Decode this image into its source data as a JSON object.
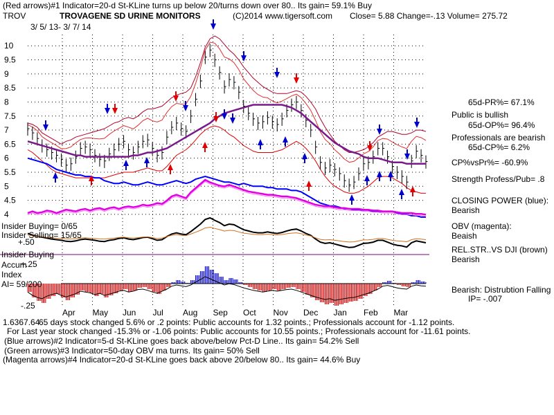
{
  "header": {
    "line1": "(Red arrows)#1 Indicator=20-d St-KLine turns up below 20/turns down over 80.. Its gain= 59.1% Buy",
    "ticker": "TROV",
    "company": "TROVAGENE SD URINE MONITORS",
    "copyright": "(C)2014 www.tigersoft.com",
    "quote": "Close=  5.88  Change=-.13 Volume= 275.72",
    "date_range": "3/ 5/ 13- 3/ 7/ 14"
  },
  "right_panel": {
    "pr": "65d-PR%= 67.1%",
    "public": "Public is bullish",
    "op": "65d-OP%= 96.4%",
    "pros": "Professionals are bearish",
    "cp": "65d-CP%= 6.2%",
    "cpvspr": "CP%vsPr%= -60.9%",
    "strength": "Strength Profess/Pub= .8",
    "closing_power": "CLOSING POWER (blue):",
    "closing_power_val": "Bearish",
    "obv": "OBV (magenta):",
    "obv_val": "Beaish",
    "relstr": "REL.STR..VS DJI (brown)",
    "relstr_val": "Bearish",
    "distribution": "Bearish: Distrubtion Falling",
    "ip": "IP= -.007"
  },
  "left_panel": {
    "insider_buying": "Insider Buying= 0/65",
    "insider_selling": "Insider Selling= 15/65",
    "plus50": "+.50",
    "insider_buying2": "Insider Buying",
    "accum": "Accum",
    "plus25": "+.25",
    "index": "Index",
    "ai": "AI= 59/200",
    "minus25": "-.25"
  },
  "footer": {
    "overlap_prefix": "1.6367.64",
    "line1": "65 days stock changed  5.6% or  .2 points:  Public accounts for  1.32 points.;  Professionals account for -1.12 points.",
    "line2": "For Last year stock changed -15.3% or -1.06 points:  Public accounts for  10.55 points.;  Professionals account for -11.61 points.",
    "line3": "(Blue arrows)#2 Indicator=5-d St-KLine goes back above/below Pct-D Line.. Its gain= 54.2% Sell",
    "line4": "(Green arrows)#3 Indicator=50-day OBV ma turns. Its gain= 50% Sell",
    "line5": "(Magenta arrows)#4 Indicator=20-d St-KLine goes back above 20/below 80.. Its gain= 44.6% Buy"
  },
  "chart_data": {
    "type": "line",
    "title": "TROVAGENE SD URINE MONITORS",
    "yticks": [
      "10",
      "9.5",
      "9",
      "8.5",
      "8",
      "7.5",
      "7",
      "6.5",
      "6",
      "5.5",
      "5",
      "4.5",
      "4"
    ],
    "ylim": [
      3.8,
      10.4
    ],
    "months": [
      "Apr",
      "May",
      "Jun",
      "Jul",
      "Aug",
      "Sep",
      "Oct",
      "Nov",
      "Dec",
      "Jan",
      "Feb",
      "Mar"
    ],
    "price_close": [
      7.05,
      6.9,
      6.7,
      6.45,
      6.3,
      6.2,
      6.1,
      5.95,
      5.75,
      5.8,
      6.05,
      6.35,
      6.4,
      6.3,
      6.1,
      5.95,
      5.9,
      6.15,
      6.3,
      6.5,
      6.6,
      6.3,
      6.2,
      6.4,
      6.6,
      6.65,
      6.35,
      6.1,
      6.2,
      6.75,
      7.1,
      7.25,
      7.05,
      6.95,
      7.5,
      8.1,
      8.75,
      9.6,
      9.85,
      9.5,
      9.05,
      8.55,
      8.8,
      8.7,
      8.35,
      7.85,
      7.6,
      7.4,
      7.25,
      7.3,
      7.45,
      7.3,
      7.2,
      7.4,
      7.7,
      7.9,
      8.0,
      7.7,
      7.35,
      7.0,
      6.4,
      5.85,
      5.65,
      5.75,
      5.6,
      5.45,
      5.2,
      5.05,
      5.15,
      5.45,
      5.8,
      5.85,
      6.05,
      6.35,
      6.35,
      6.05,
      5.7,
      5.5,
      5.35,
      5.15,
      5.9,
      6.25,
      6.1,
      5.88
    ],
    "bollinger_upper": [
      7.25,
      7.2,
      7.1,
      6.9,
      6.8,
      6.7,
      6.6,
      6.5,
      6.6,
      6.65,
      6.75,
      6.8,
      6.85,
      6.9,
      6.95,
      7.0,
      7.05,
      7.15,
      7.25,
      7.3,
      7.4,
      7.45,
      7.4,
      7.5,
      7.65,
      7.75,
      7.75,
      7.8,
      7.85,
      8.0,
      8.15,
      8.25,
      8.3,
      8.35,
      8.5,
      8.9,
      9.4,
      9.95,
      10.25,
      10.35,
      10.25,
      10.05,
      9.85,
      9.7,
      9.5,
      9.25,
      9.05,
      8.85,
      8.7,
      8.55,
      8.45,
      8.35,
      8.3,
      8.3,
      8.3,
      8.35,
      8.4,
      8.35,
      8.2,
      8.0,
      7.75,
      7.4,
      7.1,
      6.85,
      6.6,
      6.45,
      6.3,
      6.2,
      6.2,
      6.25,
      6.3,
      6.4,
      6.55,
      6.75,
      6.85,
      6.95,
      6.95,
      6.9,
      6.85,
      6.85,
      6.9,
      7.0,
      7.0,
      6.95
    ],
    "bollinger_lower": [
      6.3,
      6.2,
      6.05,
      5.9,
      5.75,
      5.6,
      5.5,
      5.45,
      5.4,
      5.35,
      5.3,
      5.3,
      5.3,
      5.3,
      5.3,
      5.3,
      5.3,
      5.35,
      5.4,
      5.45,
      5.5,
      5.5,
      5.5,
      5.55,
      5.6,
      5.65,
      5.6,
      5.55,
      5.55,
      5.7,
      5.9,
      6.1,
      6.2,
      6.3,
      6.45,
      6.65,
      6.85,
      7.0,
      7.1,
      7.15,
      7.1,
      7.0,
      6.85,
      6.75,
      6.6,
      6.45,
      6.35,
      6.25,
      6.2,
      6.2,
      6.2,
      6.2,
      6.25,
      6.3,
      6.4,
      6.5,
      6.6,
      6.5,
      6.35,
      6.15,
      5.9,
      5.6,
      5.35,
      5.15,
      5.0,
      4.9,
      4.8,
      4.75,
      4.75,
      4.8,
      4.9,
      5.0,
      5.15,
      5.3,
      5.35,
      5.35,
      5.3,
      5.2,
      5.1,
      4.95,
      4.85,
      4.8,
      4.75,
      4.75
    ],
    "ma50": [
      6.6,
      6.55,
      6.5,
      6.45,
      6.4,
      6.35,
      6.3,
      6.25,
      6.2,
      6.15,
      6.1,
      6.1,
      6.05,
      6.05,
      6.05,
      6.05,
      6.05,
      6.05,
      6.05,
      6.05,
      6.05,
      6.05,
      6.1,
      6.1,
      6.15,
      6.2,
      6.2,
      6.25,
      6.3,
      6.35,
      6.45,
      6.55,
      6.65,
      6.75,
      6.85,
      6.95,
      7.05,
      7.15,
      7.25,
      7.4,
      7.5,
      7.6,
      7.65,
      7.7,
      7.75,
      7.8,
      7.85,
      7.9,
      7.9,
      7.9,
      7.9,
      7.9,
      7.9,
      7.9,
      7.85,
      7.8,
      7.7,
      7.6,
      7.45,
      7.3,
      7.15,
      7.0,
      6.85,
      6.7,
      6.55,
      6.45,
      6.35,
      6.25,
      6.2,
      6.15,
      6.05,
      6.0,
      6.0,
      6.0,
      5.95,
      5.9,
      5.85,
      5.85,
      5.85,
      5.8,
      5.8,
      5.8,
      5.8,
      5.8
    ],
    "closing_power": [
      6.0,
      5.95,
      5.9,
      5.85,
      5.8,
      5.7,
      5.6,
      5.55,
      5.5,
      5.45,
      5.4,
      5.4,
      5.35,
      5.35,
      5.3,
      5.3,
      5.2,
      5.15,
      5.1,
      5.1,
      5.15,
      5.1,
      5.05,
      5.05,
      5.1,
      5.15,
      5.1,
      5.05,
      5.05,
      5.1,
      5.15,
      5.2,
      5.15,
      5.1,
      5.15,
      5.25,
      5.3,
      5.35,
      5.3,
      5.25,
      5.2,
      5.15,
      5.15,
      5.1,
      5.05,
      5.1,
      5.05,
      5.0,
      5.0,
      5.0,
      4.95,
      4.95,
      4.9,
      4.9,
      4.9,
      4.85,
      4.85,
      4.8,
      4.7,
      4.6,
      4.5,
      4.4,
      4.35,
      4.3,
      4.3,
      4.25,
      4.2,
      4.2,
      4.15,
      4.15,
      4.15,
      4.15,
      4.1,
      4.1,
      4.1,
      4.1,
      4.1,
      4.05,
      4.0,
      4.0,
      3.95,
      3.95,
      3.9,
      3.9
    ],
    "obv": [
      3.6,
      3.62,
      3.6,
      3.61,
      3.63,
      3.62,
      3.6,
      3.62,
      3.64,
      3.63,
      3.62,
      3.64,
      3.65,
      3.63,
      3.65,
      3.66,
      3.64,
      3.66,
      3.67,
      3.65,
      3.67,
      3.68,
      3.67,
      3.68,
      3.7,
      3.69,
      3.7,
      3.72,
      3.71,
      3.75,
      3.8,
      3.82,
      3.8,
      3.78,
      3.85,
      3.9,
      3.95,
      4.0,
      3.97,
      3.95,
      3.93,
      3.92,
      3.94,
      3.92,
      3.9,
      3.88,
      3.86,
      3.85,
      3.84,
      3.83,
      3.82,
      3.82,
      3.81,
      3.8,
      3.8,
      3.79,
      3.78,
      3.76,
      3.74,
      3.72,
      3.7,
      3.69,
      3.68,
      3.68,
      3.67,
      3.66,
      3.66,
      3.65,
      3.65,
      3.65,
      3.64,
      3.64,
      3.63,
      3.63,
      3.62,
      3.62,
      3.62,
      3.61,
      3.6,
      3.6,
      3.6,
      3.59,
      3.59,
      3.58
    ],
    "rel_strength": [
      3.4,
      3.35,
      3.3,
      3.28,
      3.25,
      3.22,
      3.2,
      3.18,
      3.15,
      3.14,
      3.16,
      3.2,
      3.22,
      3.2,
      3.18,
      3.15,
      3.14,
      3.18,
      3.2,
      3.24,
      3.26,
      3.22,
      3.2,
      3.23,
      3.27,
      3.28,
      3.23,
      3.18,
      3.2,
      3.3,
      3.38,
      3.42,
      3.38,
      3.36,
      3.46,
      3.58,
      3.7,
      3.85,
      3.9,
      3.82,
      3.75,
      3.65,
      3.7,
      3.68,
      3.6,
      3.52,
      3.48,
      3.44,
      3.42,
      3.42,
      3.45,
      3.42,
      3.4,
      3.43,
      3.48,
      3.52,
      3.54,
      3.48,
      3.4,
      3.34,
      3.22,
      3.12,
      3.08,
      3.1,
      3.06,
      3.02,
      2.98,
      2.95,
      2.96,
      3.02,
      3.08,
      3.09,
      3.12,
      3.18,
      3.18,
      3.12,
      3.06,
      3.02,
      3.0,
      2.96,
      3.1,
      3.16,
      3.13,
      3.1
    ],
    "accum_index": [
      -0.12,
      -0.2,
      -0.25,
      -0.28,
      -0.22,
      -0.18,
      -0.15,
      -0.2,
      -0.24,
      -0.2,
      -0.16,
      -0.1,
      -0.12,
      -0.14,
      -0.18,
      -0.15,
      -0.2,
      -0.17,
      -0.14,
      -0.1,
      -0.08,
      -0.12,
      -0.1,
      -0.06,
      -0.05,
      -0.08,
      -0.12,
      -0.15,
      -0.1,
      -0.05,
      0.02,
      0.05,
      0.03,
      0.01,
      0.05,
      0.12,
      0.18,
      0.25,
      0.2,
      0.15,
      0.1,
      0.05,
      0.08,
      0.06,
      0.02,
      -0.02,
      -0.05,
      -0.08,
      -0.1,
      -0.12,
      -0.1,
      -0.08,
      -0.1,
      -0.08,
      -0.06,
      -0.05,
      -0.08,
      -0.12,
      -0.16,
      -0.2,
      -0.24,
      -0.27,
      -0.3,
      -0.28,
      -0.32,
      -0.3,
      -0.28,
      -0.26,
      -0.25,
      -0.22,
      -0.18,
      -0.15,
      -0.1,
      -0.05,
      0.02,
      0.04,
      0.01,
      -0.02,
      -0.04,
      -0.05,
      0.02,
      0.05,
      0.03,
      0.02
    ]
  }
}
